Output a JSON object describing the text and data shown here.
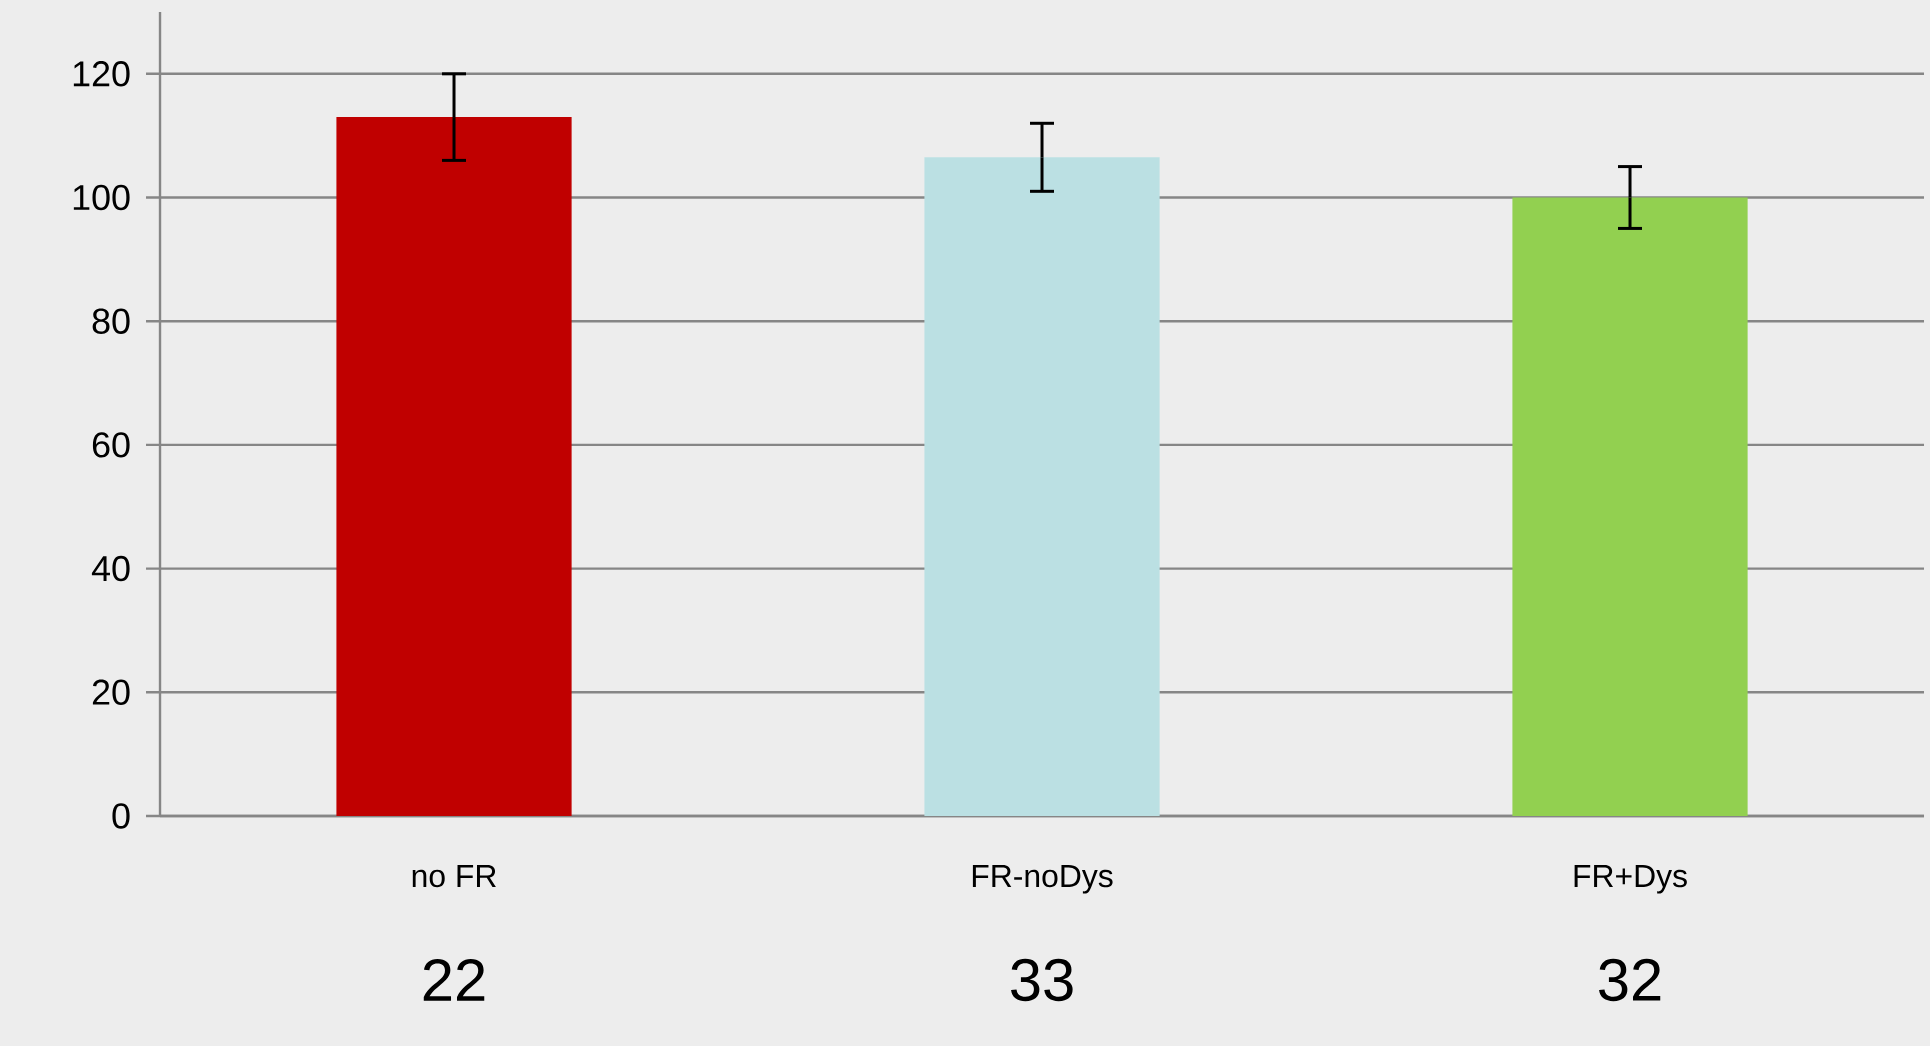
{
  "chart_data": {
    "type": "bar",
    "categories": [
      "no FR",
      "FR-noDys",
      "FR+Dys"
    ],
    "values": [
      113,
      106.5,
      100
    ],
    "errors": [
      7,
      5.5,
      5
    ],
    "colors": [
      "#c00000",
      "#bbe0e3",
      "#92d050"
    ],
    "ylim": [
      0,
      130
    ],
    "yticks": [
      0,
      20,
      40,
      60,
      80,
      100,
      120
    ],
    "grid": "y",
    "annotations": [
      "22",
      "33",
      "32"
    ]
  }
}
